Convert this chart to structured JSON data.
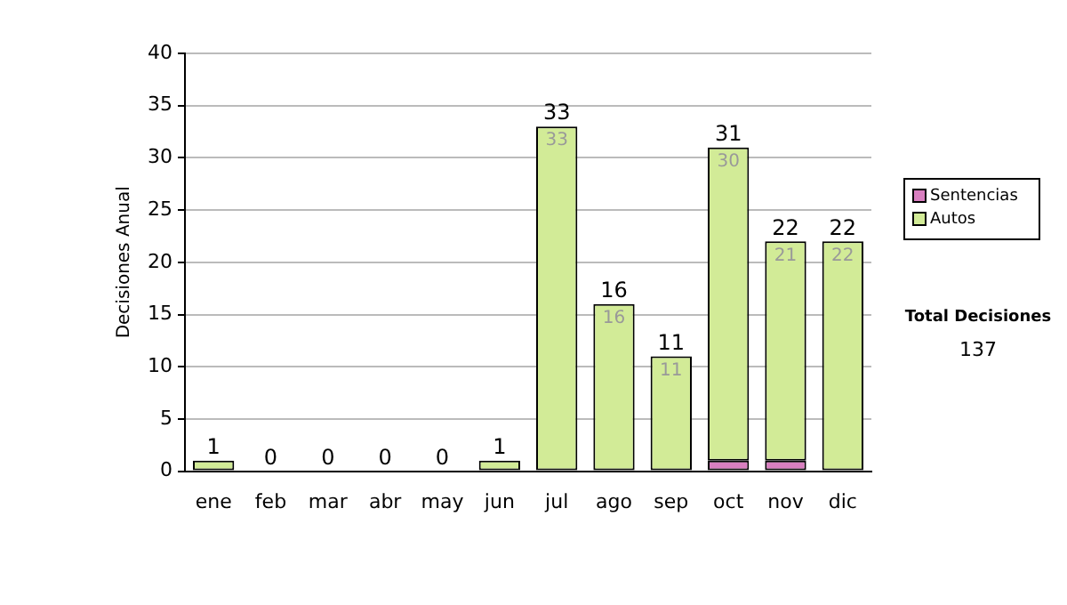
{
  "chart_data": {
    "type": "bar",
    "stacked": true,
    "ylabel": "Decisiones Anual",
    "categories": [
      "ene",
      "feb",
      "mar",
      "abr",
      "may",
      "jun",
      "jul",
      "ago",
      "sep",
      "oct",
      "nov",
      "dic"
    ],
    "series": [
      {
        "name": "Sentencias",
        "color": "#d97fc0",
        "values": [
          0,
          0,
          0,
          0,
          0,
          0,
          0,
          0,
          0,
          1,
          1,
          0
        ]
      },
      {
        "name": "Autos",
        "color": "#d2eb97",
        "values": [
          1,
          0,
          0,
          0,
          0,
          1,
          33,
          16,
          11,
          30,
          21,
          22
        ],
        "value_labels": [
          null,
          null,
          null,
          null,
          null,
          null,
          "33",
          "16",
          "11",
          "30",
          "21",
          "22"
        ]
      }
    ],
    "totals": [
      "1",
      "0",
      "0",
      "0",
      "0",
      "1",
      "33",
      "16",
      "11",
      "31",
      "22",
      "22"
    ],
    "ylim": [
      0,
      40
    ],
    "yticks": [
      0,
      5,
      10,
      15,
      20,
      25,
      30,
      35,
      40
    ],
    "grid": "y",
    "legend": "right",
    "annotations": [
      "Total Decisiones",
      "137"
    ]
  }
}
